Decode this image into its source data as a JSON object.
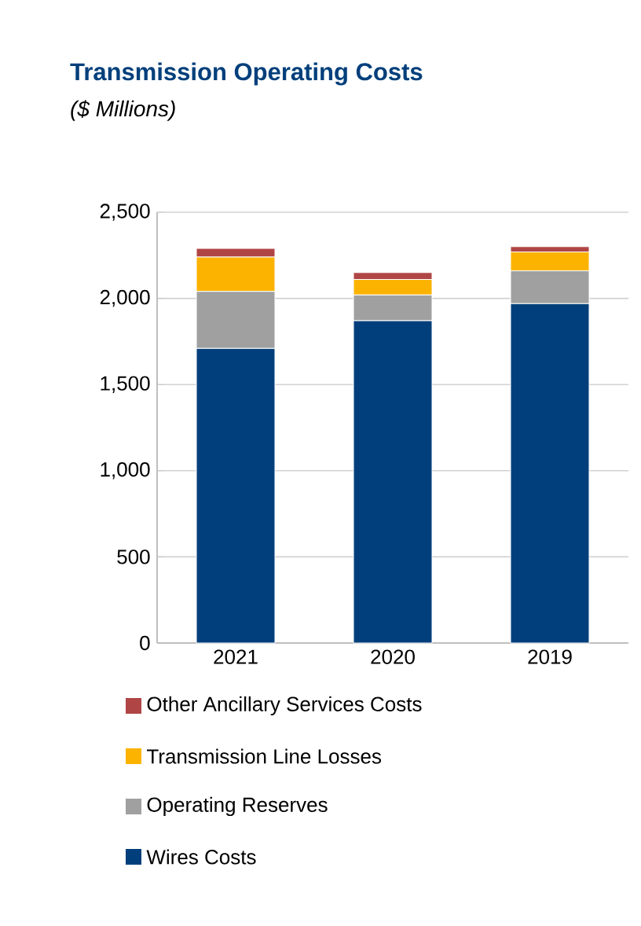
{
  "chart_data": {
    "type": "bar",
    "title": "Transmission Operating Costs",
    "subtitle": "($ Millions)",
    "categories": [
      "2021",
      "2020",
      "2019"
    ],
    "stacked": true,
    "series": [
      {
        "name": "Wires Costs",
        "color": "#003f7b",
        "values": [
          1710,
          1870,
          1970
        ]
      },
      {
        "name": "Operating Reserves",
        "color": "#a0a0a0",
        "values": [
          330,
          150,
          190
        ]
      },
      {
        "name": "Transmission Line Losses",
        "color": "#fbb300",
        "values": [
          200,
          90,
          110
        ]
      },
      {
        "name": "Other Ancillary Services Costs",
        "color": "#b04545",
        "values": [
          50,
          40,
          30
        ]
      }
    ],
    "ylim": [
      0,
      2500
    ],
    "yticks": [
      0,
      500,
      {
        "value": 1000,
        "label": "1,000"
      },
      {
        "value": 1500,
        "label": "1,500"
      },
      {
        "value": 2000,
        "label": "2,000"
      },
      {
        "value": 2500,
        "label": "2,500"
      }
    ],
    "grid": "y",
    "legend": "bottom"
  }
}
